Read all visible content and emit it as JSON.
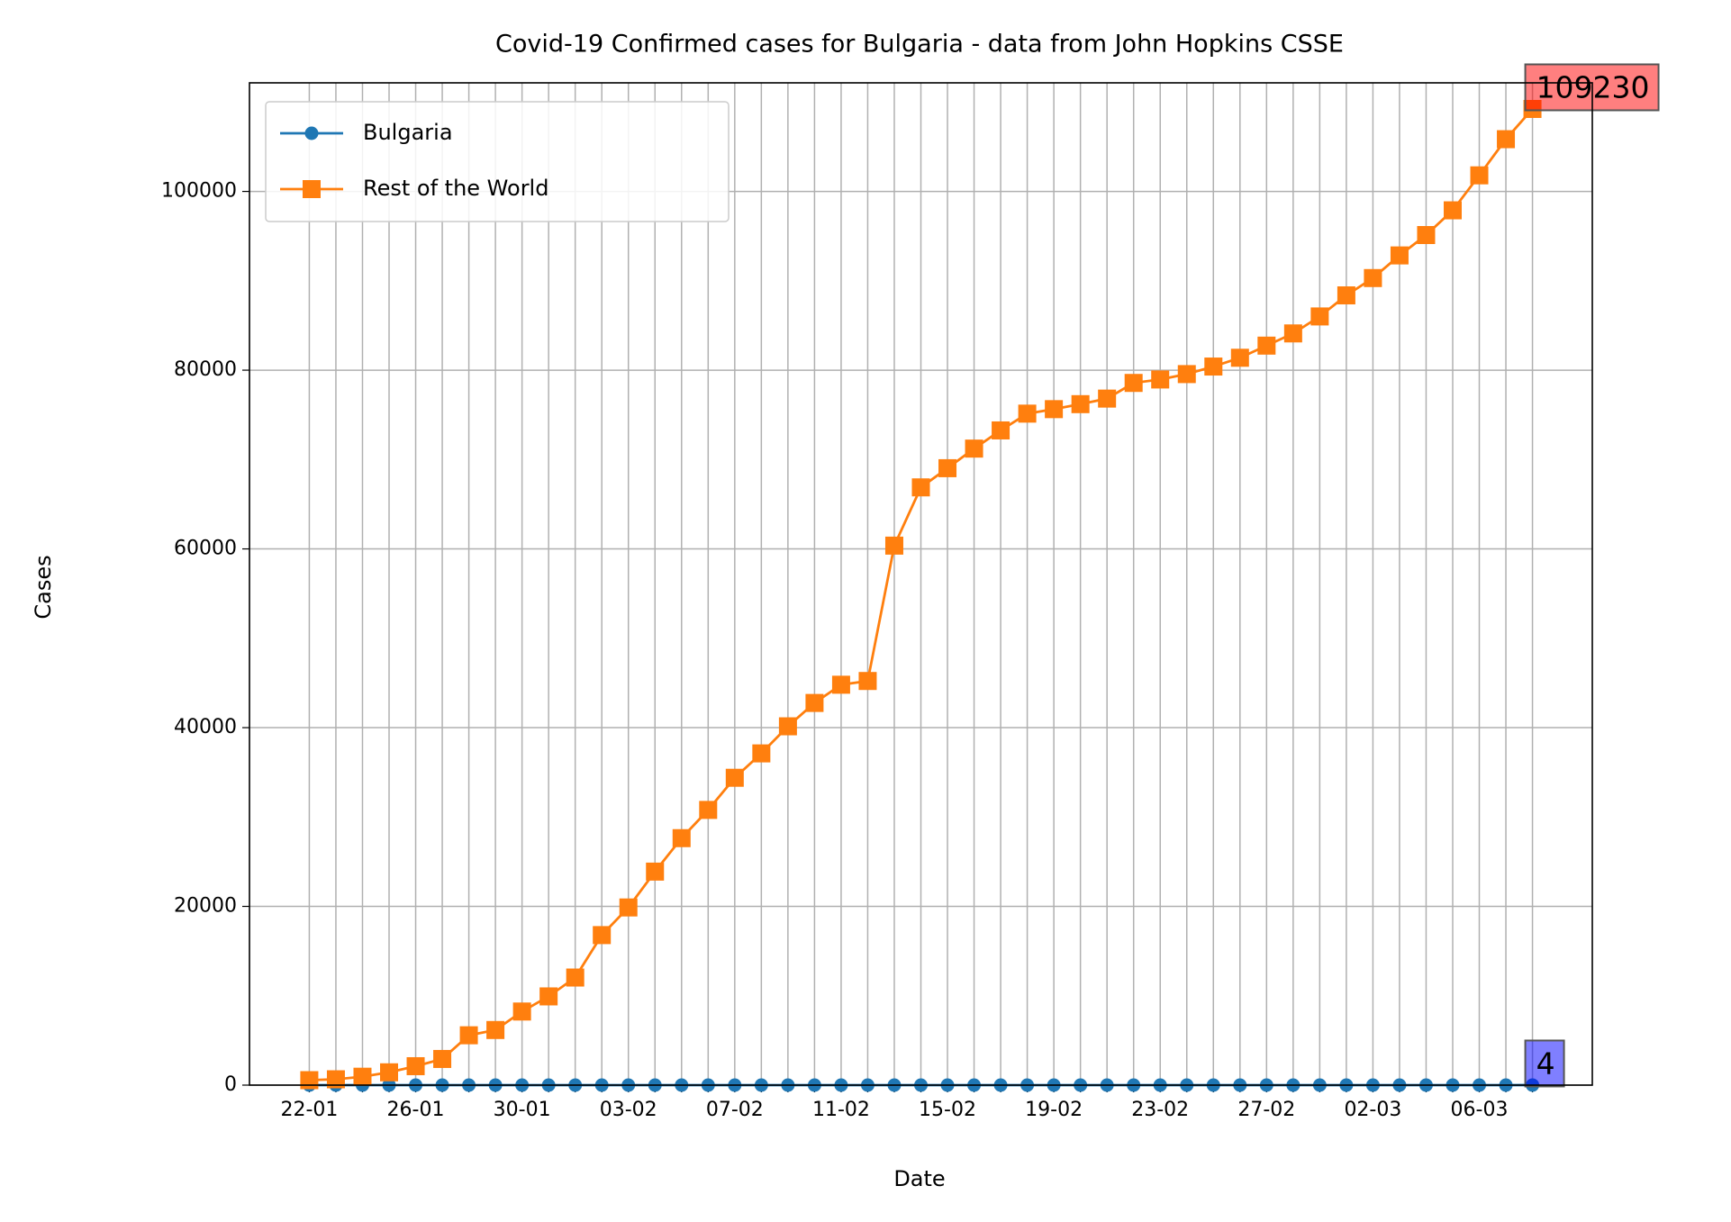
{
  "chart_data": {
    "type": "line",
    "title": "Covid-19 Confirmed cases for Bulgaria - data from John Hopkins CSSE",
    "x_label": "Date",
    "y_label": "Cases",
    "categories": [
      "22-01",
      null,
      null,
      null,
      "26-01",
      null,
      null,
      null,
      "30-01",
      null,
      null,
      null,
      "03-02",
      null,
      null,
      null,
      "07-02",
      null,
      null,
      null,
      "11-02",
      null,
      null,
      null,
      "15-02",
      null,
      null,
      null,
      "19-02",
      null,
      null,
      null,
      "23-02",
      null,
      null,
      null,
      "27-02",
      null,
      null,
      null,
      "02-03",
      null,
      null,
      null,
      "06-03",
      null,
      null
    ],
    "series": [
      {
        "name": "Bulgaria",
        "color": "#1f77b4",
        "marker": "circle",
        "label_color": "#0000ff",
        "values": [
          0,
          0,
          0,
          0,
          0,
          0,
          0,
          0,
          0,
          0,
          0,
          0,
          0,
          0,
          0,
          0,
          0,
          0,
          0,
          0,
          0,
          0,
          0,
          0,
          0,
          0,
          0,
          0,
          0,
          0,
          0,
          0,
          0,
          0,
          0,
          0,
          0,
          0,
          0,
          0,
          0,
          0,
          0,
          0,
          0,
          0,
          4
        ]
      },
      {
        "name": "Rest of the World",
        "color": "#ff7f0e",
        "marker": "square",
        "label_color": "#ff0000",
        "values": [
          555,
          654,
          941,
          1434,
          2118,
          2927,
          5578,
          6166,
          8234,
          9927,
          12038,
          16787,
          19881,
          23892,
          27635,
          30794,
          34391,
          37120,
          40150,
          42762,
          44802,
          45221,
          60368,
          66885,
          69030,
          71224,
          73258,
          75136,
          75639,
          76197,
          76819,
          78572,
          78958,
          79561,
          80406,
          81388,
          82746,
          84112,
          86011,
          88369,
          90306,
          92840,
          95120,
          97886,
          101801,
          105847,
          109230
        ]
      }
    ],
    "ylim": [
      0,
      112150
    ],
    "yticks": [
      0,
      20000,
      40000,
      60000,
      80000,
      100000
    ],
    "grid": true,
    "legend": "upper left"
  }
}
